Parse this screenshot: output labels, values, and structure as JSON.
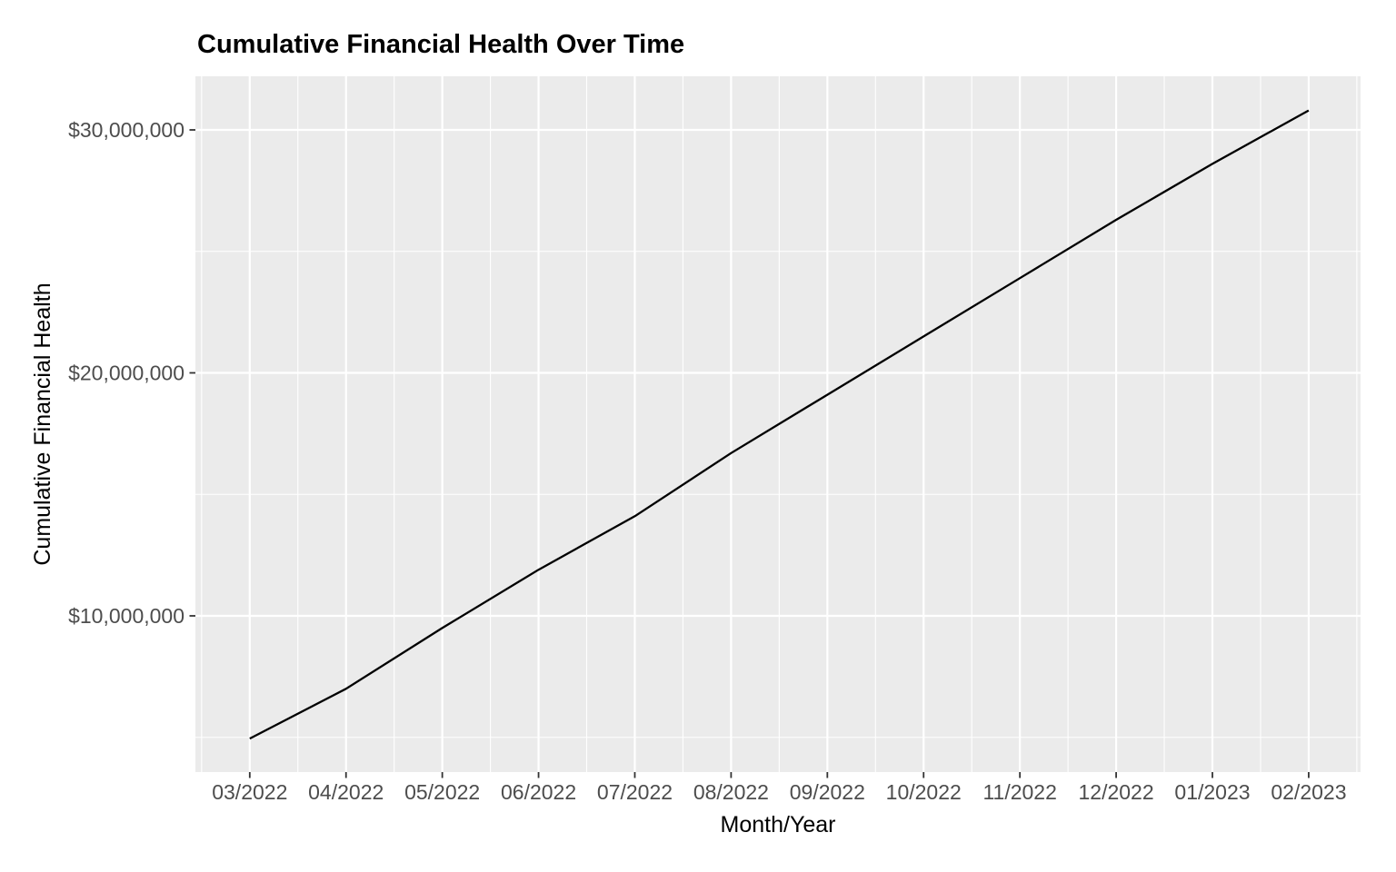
{
  "chart_data": {
    "type": "line",
    "title": "Cumulative Financial Health Over Time",
    "xlabel": "Month/Year",
    "ylabel": "Cumulative Financial Health",
    "categories": [
      "03/2022",
      "04/2022",
      "05/2022",
      "06/2022",
      "07/2022",
      "08/2022",
      "09/2022",
      "10/2022",
      "11/2022",
      "12/2022",
      "01/2023",
      "02/2023"
    ],
    "values": [
      4950000,
      7000000,
      9500000,
      11900000,
      14100000,
      16700000,
      19100000,
      21500000,
      23900000,
      26300000,
      28600000,
      30800000
    ],
    "series_name": "Cumulative Financial Health",
    "y_ticks": [
      {
        "value": 10000000,
        "label": "$10,000,000"
      },
      {
        "value": 20000000,
        "label": "$20,000,000"
      },
      {
        "value": 30000000,
        "label": "$30,000,000"
      }
    ],
    "y_minor": [
      5000000,
      15000000,
      25000000
    ],
    "ylim": [
      3660000,
      32090000
    ],
    "grid": true,
    "legend": false,
    "colors": {
      "line": "#000000",
      "panel_background": "#EBEBEB",
      "gridline": "#FFFFFF",
      "tick_label": "#4D4D4D",
      "tick_mark": "#333333",
      "axis_title": "#000000",
      "title": "#000000",
      "figure_background": "#FFFFFF"
    }
  }
}
